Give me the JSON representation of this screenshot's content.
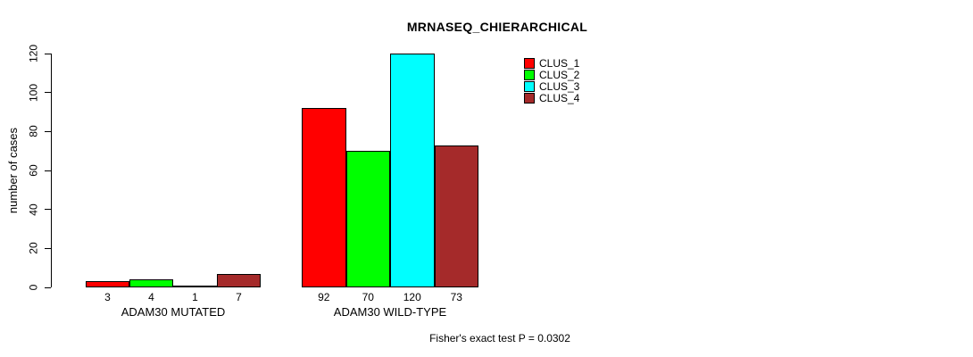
{
  "chart_data": {
    "type": "bar",
    "title": "MRNASEQ_CHIERARCHICAL",
    "ylabel": "number of cases",
    "ylim": [
      0,
      120
    ],
    "yticks": [
      0,
      20,
      40,
      60,
      80,
      100,
      120
    ],
    "grid": false,
    "legend_position": "top-right",
    "categories": [
      "ADAM30 MUTATED",
      "ADAM30 WILD-TYPE"
    ],
    "series": [
      {
        "name": "CLUS_1",
        "color": "#FF0000",
        "values": [
          3,
          92
        ]
      },
      {
        "name": "CLUS_2",
        "color": "#00FF00",
        "values": [
          4,
          70
        ]
      },
      {
        "name": "CLUS_3",
        "color": "#00FFFF",
        "values": [
          1,
          120
        ]
      },
      {
        "name": "CLUS_4",
        "color": "#A52A2A",
        "values": [
          7,
          73
        ]
      }
    ],
    "groups": [
      {
        "label": "ADAM30 MUTATED",
        "values": [
          3,
          4,
          1,
          7
        ]
      },
      {
        "label": "ADAM30 WILD-TYPE",
        "values": [
          92,
          70,
          120,
          73
        ]
      }
    ],
    "annotation": "Fisher's exact test P = 0.0302"
  }
}
